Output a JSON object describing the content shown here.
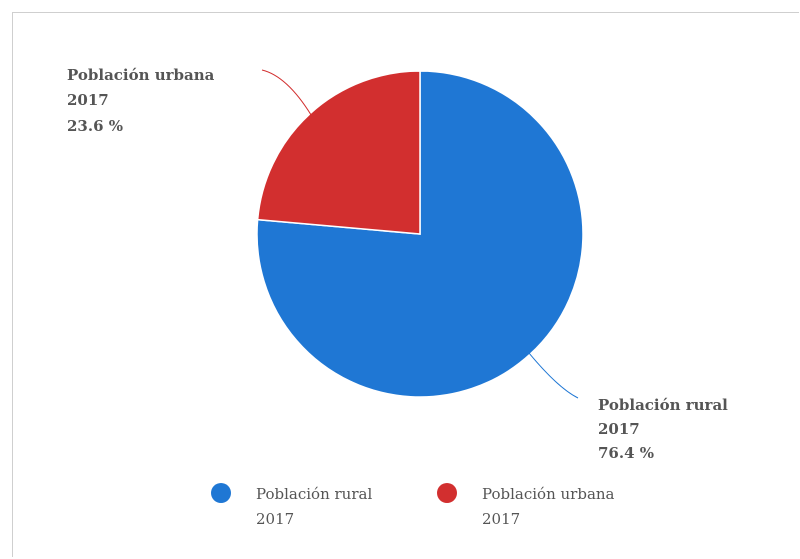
{
  "chart_data": {
    "type": "pie",
    "title": "",
    "categories": [
      "Población rural 2017",
      "Población urbana 2017"
    ],
    "values": [
      76.4,
      23.6
    ],
    "unit": "%",
    "colors": [
      "#1f77d4",
      "#d22f2f"
    ],
    "legend_position": "bottom",
    "callouts": [
      {
        "lines": [
          "Población rural",
          "2017",
          "76.4 %"
        ]
      },
      {
        "lines": [
          "Población urbana",
          "2017",
          "23.6 %"
        ]
      }
    ],
    "legend": [
      {
        "lines": [
          "Población rural",
          "2017"
        ]
      },
      {
        "lines": [
          "Población urbana",
          "2017"
        ]
      }
    ]
  }
}
